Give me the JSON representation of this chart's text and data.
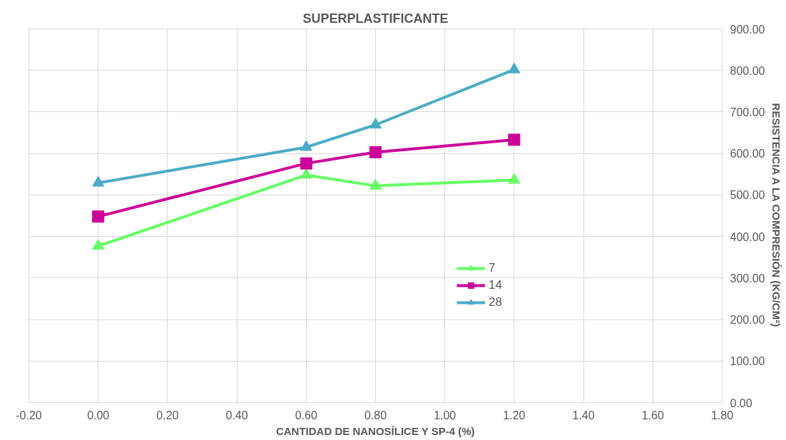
{
  "chart_data": {
    "type": "line",
    "title": "SUPERPLASTIFICANTE",
    "xlabel": "CANTIDAD DE NANOSÍLICE Y SP-4 (%)",
    "ylabel": "RESISTENCIA A LA COMPRESIÓN (KG/CM²)",
    "x": [
      0.0,
      0.6,
      0.8,
      1.2
    ],
    "series": [
      {
        "name": "7",
        "color": "#66ff66",
        "marker": "triangle",
        "values": [
          377,
          548,
          522,
          536
        ]
      },
      {
        "name": "14",
        "color": "#cc0099",
        "marker": "square",
        "values": [
          448,
          576,
          603,
          633
        ]
      },
      {
        "name": "28",
        "color": "#4bacc6",
        "marker": "triangle",
        "values": [
          529,
          615,
          669,
          802
        ]
      }
    ],
    "xlim": [
      -0.2,
      1.8
    ],
    "xticks": [
      {
        "value": -0.2,
        "label": "-0.20"
      },
      {
        "value": 0,
        "label": "0.00"
      },
      {
        "value": 0.2,
        "label": "0.20"
      },
      {
        "value": 0.4,
        "label": "0.40"
      },
      {
        "value": 0.6,
        "label": "0.60"
      },
      {
        "value": 0.8,
        "label": "0.80"
      },
      {
        "value": 1.0,
        "label": "1.00"
      },
      {
        "value": 1.2,
        "label": "1.20"
      },
      {
        "value": 1.4,
        "label": "1.40"
      },
      {
        "value": 1.6,
        "label": "1.60"
      },
      {
        "value": 1.8,
        "label": "1.80"
      }
    ],
    "ylim": [
      0,
      900
    ],
    "yticks": [
      {
        "value": 0,
        "label": "0.00"
      },
      {
        "value": 100,
        "label": "100.00"
      },
      {
        "value": 200,
        "label": "200.00"
      },
      {
        "value": 300,
        "label": "300.00"
      },
      {
        "value": 400,
        "label": "400.00"
      },
      {
        "value": 500,
        "label": "500.00"
      },
      {
        "value": 600,
        "label": "600.00"
      },
      {
        "value": 700,
        "label": "700.00"
      },
      {
        "value": 800,
        "label": "800.00"
      },
      {
        "value": 900,
        "label": "900.00"
      }
    ],
    "grid": true,
    "legend": "bottom right",
    "line_style": "solid"
  }
}
